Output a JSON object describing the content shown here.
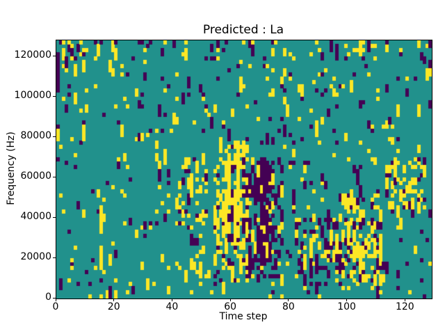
{
  "chart_data": {
    "type": "heatmap",
    "title": "Predicted : La",
    "xlabel": "Time step",
    "ylabel": "Frequency (Hz)",
    "x_range": [
      0,
      129
    ],
    "y_range": [
      0,
      128000
    ],
    "x_ticks": [
      0,
      20,
      40,
      60,
      80,
      100,
      120
    ],
    "y_ticks": [
      0,
      20000,
      40000,
      60000,
      80000,
      100000,
      120000
    ],
    "grid_cols": 129,
    "grid_rows": 64,
    "legend": "none",
    "values": {
      "background": 0,
      "low": -1,
      "high": 1
    },
    "colors": {
      "background": "#21918c",
      "low": "#440154",
      "high": "#fde725"
    },
    "random_seed": 1337,
    "base_density": {
      "high": 0.032,
      "low": 0.024
    },
    "streak_boost": 0.28,
    "clusters": [
      {
        "x": [
          2,
          6
        ],
        "y": [
          56,
          64
        ],
        "high": 0.15,
        "low": 0.1
      },
      {
        "x": [
          42,
          52
        ],
        "y": [
          18,
          34
        ],
        "high": 0.18,
        "low": 0.04
      },
      {
        "x": [
          44,
          50
        ],
        "y": [
          4,
          12
        ],
        "high": 0.12,
        "low": 0.0
      },
      {
        "x": [
          54,
          66
        ],
        "y": [
          4,
          38
        ],
        "high": 0.22,
        "low": 0.05
      },
      {
        "x": [
          58,
          63
        ],
        "y": [
          12,
          34
        ],
        "high": 0.25,
        "low": 0.0
      },
      {
        "x": [
          64,
          78
        ],
        "y": [
          4,
          34
        ],
        "high": 0.06,
        "low": 0.22
      },
      {
        "x": [
          70,
          74
        ],
        "y": [
          8,
          36
        ],
        "high": 0.0,
        "low": 0.3
      },
      {
        "x": [
          82,
          97
        ],
        "y": [
          2,
          20
        ],
        "high": 0.07,
        "low": 0.16
      },
      {
        "x": [
          97,
          112
        ],
        "y": [
          3,
          26
        ],
        "high": 0.2,
        "low": 0.12
      },
      {
        "x": [
          100,
          107
        ],
        "y": [
          24,
          34
        ],
        "high": 0.12,
        "low": 0.06
      },
      {
        "x": [
          113,
          127
        ],
        "y": [
          20,
          34
        ],
        "high": 0.16,
        "low": 0.08
      },
      {
        "x": [
          0,
          129
        ],
        "y": [
          59,
          64
        ],
        "high": 0.04,
        "low": 0.04
      }
    ]
  }
}
